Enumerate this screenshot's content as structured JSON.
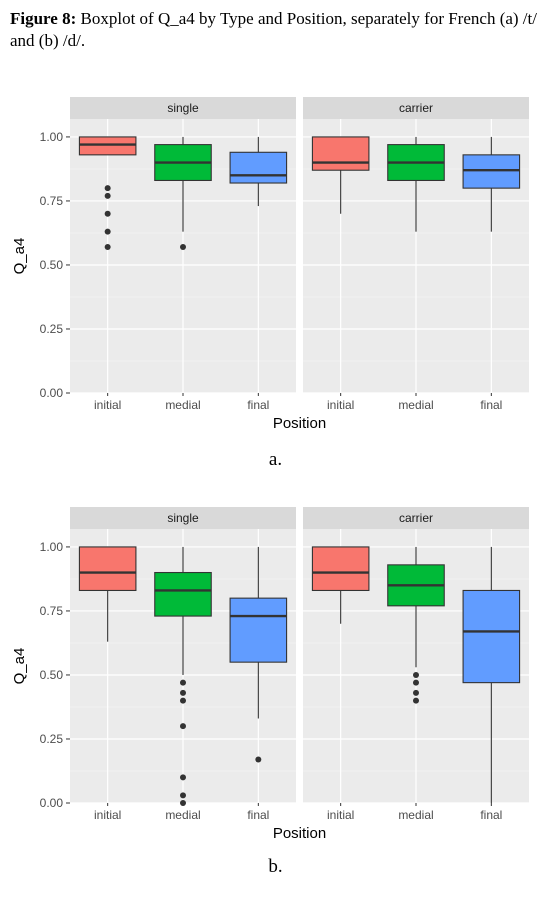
{
  "caption": {
    "label": "Figure 8:",
    "text": " Boxplot of Q_a4 by Type and Position, separately for French (a) /t/ and (b) /d/."
  },
  "chart_data": [
    {
      "id": "a",
      "type": "boxplot",
      "sublabel": "a.",
      "xlabel": "Position",
      "ylabel": "Q_a4",
      "ylim": [
        0,
        1.07
      ],
      "yticks": [
        0.0,
        0.25,
        0.5,
        0.75,
        1.0
      ],
      "ytick_labels": [
        "0.00",
        "0.25",
        "0.50",
        "0.75",
        "1.00"
      ],
      "categories": [
        "initial",
        "medial",
        "final"
      ],
      "colors": {
        "initial": "#F8766D",
        "medial": "#00BA38",
        "final": "#619CFF"
      },
      "grid": true,
      "panels": [
        {
          "title": "single",
          "boxes": [
            {
              "category": "initial",
              "lower_whisker": 0.93,
              "q1": 0.93,
              "median": 0.97,
              "q3": 1.0,
              "upper_whisker": 1.0,
              "outliers": [
                0.8,
                0.77,
                0.7,
                0.63,
                0.57
              ]
            },
            {
              "category": "medial",
              "lower_whisker": 0.63,
              "q1": 0.83,
              "median": 0.9,
              "q3": 0.97,
              "upper_whisker": 1.0,
              "outliers": [
                0.57
              ]
            },
            {
              "category": "final",
              "lower_whisker": 0.73,
              "q1": 0.82,
              "median": 0.85,
              "q3": 0.94,
              "upper_whisker": 1.0,
              "outliers": []
            }
          ]
        },
        {
          "title": "carrier",
          "boxes": [
            {
              "category": "initial",
              "lower_whisker": 0.7,
              "q1": 0.87,
              "median": 0.9,
              "q3": 1.0,
              "upper_whisker": 1.0,
              "outliers": []
            },
            {
              "category": "medial",
              "lower_whisker": 0.63,
              "q1": 0.83,
              "median": 0.9,
              "q3": 0.97,
              "upper_whisker": 1.0,
              "outliers": []
            },
            {
              "category": "final",
              "lower_whisker": 0.63,
              "q1": 0.8,
              "median": 0.87,
              "q3": 0.93,
              "upper_whisker": 1.0,
              "outliers": []
            }
          ]
        }
      ]
    },
    {
      "id": "b",
      "type": "boxplot",
      "sublabel": "b.",
      "xlabel": "Position",
      "ylabel": "Q_a4",
      "ylim": [
        0,
        1.07
      ],
      "yticks": [
        0.0,
        0.25,
        0.5,
        0.75,
        1.0
      ],
      "ytick_labels": [
        "0.00",
        "0.25",
        "0.50",
        "0.75",
        "1.00"
      ],
      "categories": [
        "initial",
        "medial",
        "final"
      ],
      "colors": {
        "initial": "#F8766D",
        "medial": "#00BA38",
        "final": "#619CFF"
      },
      "grid": true,
      "panels": [
        {
          "title": "single",
          "boxes": [
            {
              "category": "initial",
              "lower_whisker": 0.63,
              "q1": 0.83,
              "median": 0.9,
              "q3": 1.0,
              "upper_whisker": 1.0,
              "outliers": []
            },
            {
              "category": "medial",
              "lower_whisker": 0.5,
              "q1": 0.73,
              "median": 0.83,
              "q3": 0.9,
              "upper_whisker": 1.0,
              "outliers": [
                0.47,
                0.43,
                0.4,
                0.3,
                0.1,
                0.03,
                0.0
              ]
            },
            {
              "category": "final",
              "lower_whisker": 0.33,
              "q1": 0.55,
              "median": 0.73,
              "q3": 0.8,
              "upper_whisker": 1.0,
              "outliers": [
                0.17
              ]
            }
          ]
        },
        {
          "title": "carrier",
          "boxes": [
            {
              "category": "initial",
              "lower_whisker": 0.7,
              "q1": 0.83,
              "median": 0.9,
              "q3": 1.0,
              "upper_whisker": 1.0,
              "outliers": []
            },
            {
              "category": "medial",
              "lower_whisker": 0.53,
              "q1": 0.77,
              "median": 0.85,
              "q3": 0.93,
              "upper_whisker": 1.0,
              "outliers": [
                0.5,
                0.47,
                0.43,
                0.4
              ]
            },
            {
              "category": "final",
              "lower_whisker": 0.0,
              "q1": 0.47,
              "median": 0.67,
              "q3": 0.83,
              "upper_whisker": 1.0,
              "outliers": []
            }
          ]
        }
      ]
    }
  ]
}
